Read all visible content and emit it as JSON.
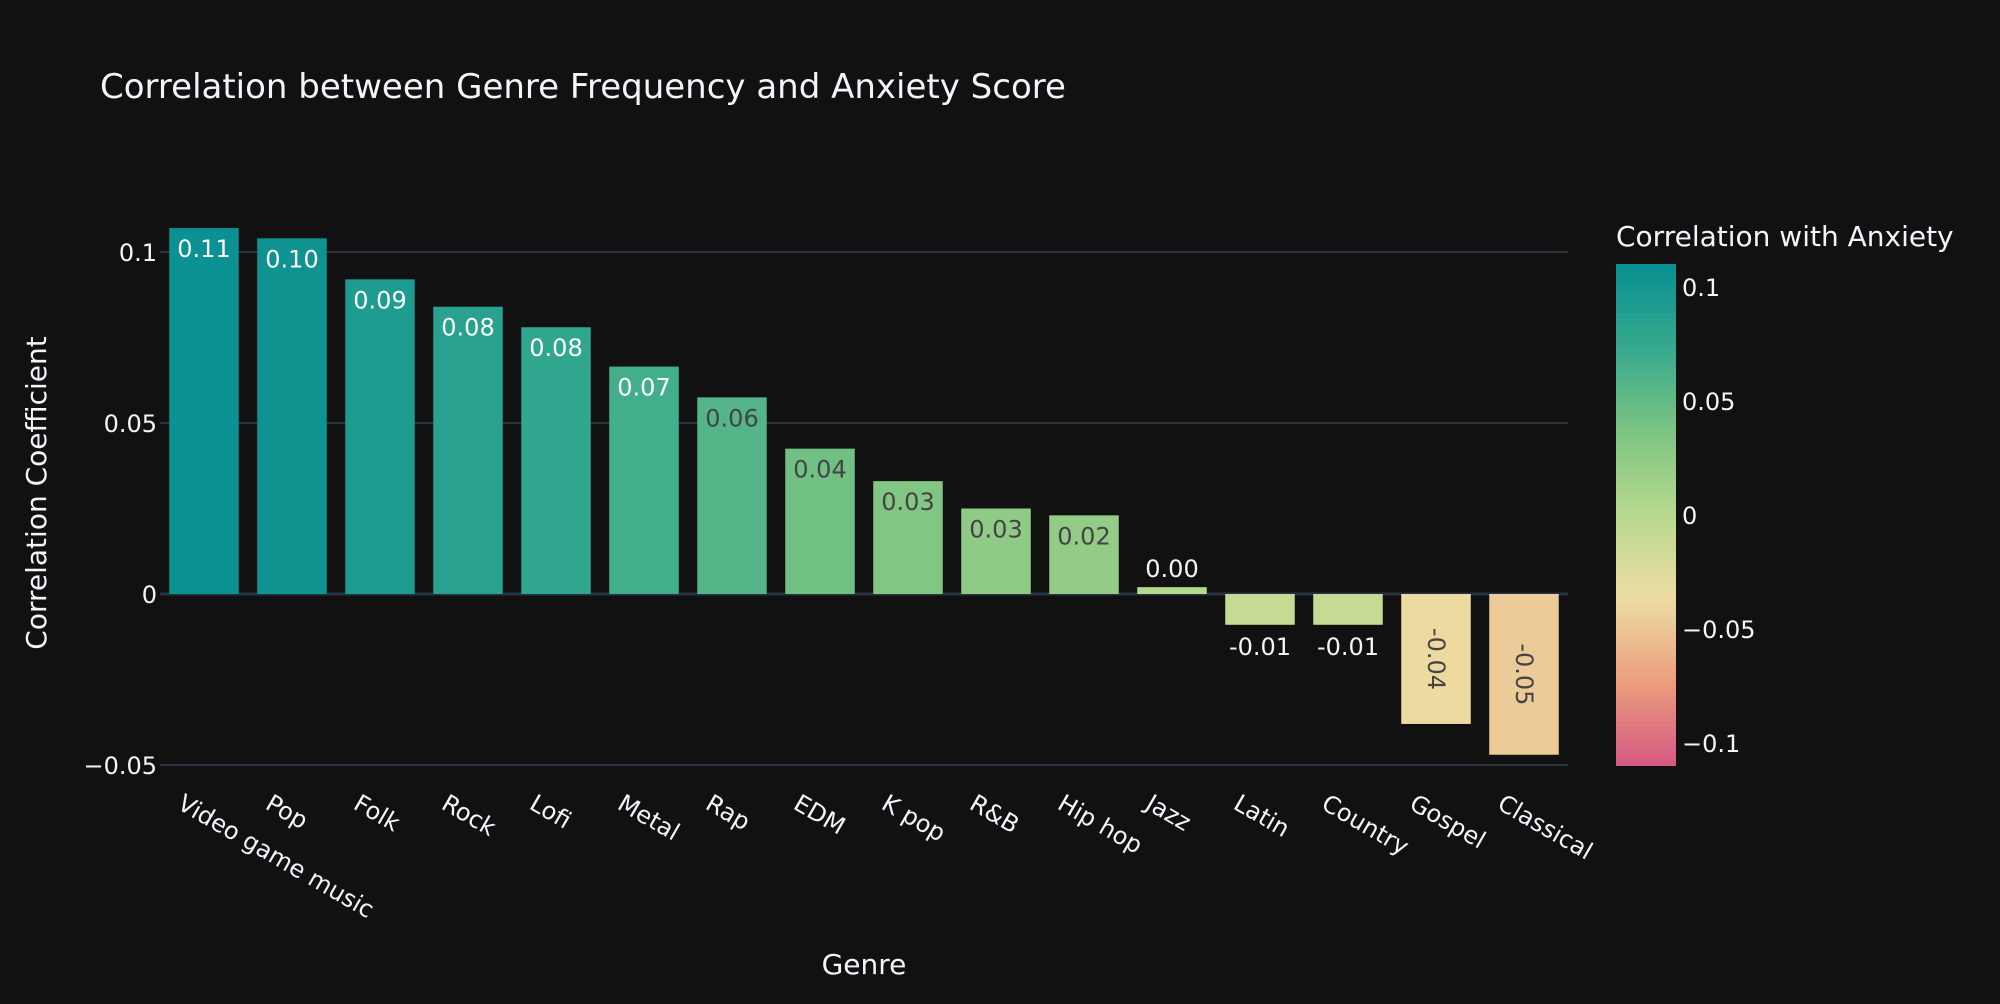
{
  "chart_data": {
    "type": "bar",
    "title": "Correlation between Genre Frequency and Anxiety Score",
    "xlabel": "Genre",
    "ylabel": "Correlation Coefficient",
    "categories": [
      "Video game music",
      "Pop",
      "Folk",
      "Rock",
      "Lofi",
      "Metal",
      "Rap",
      "EDM",
      "K pop",
      "R&B",
      "Hip hop",
      "Jazz",
      "Latin",
      "Country",
      "Gospel",
      "Classical"
    ],
    "values": [
      0.107,
      0.104,
      0.092,
      0.084,
      0.078,
      0.0665,
      0.0575,
      0.0425,
      0.033,
      0.025,
      0.023,
      0.002,
      -0.009,
      -0.009,
      -0.038,
      -0.047
    ],
    "data_labels": [
      "0.11",
      "0.10",
      "0.09",
      "0.08",
      "0.08",
      "0.07",
      "0.06",
      "0.04",
      "0.03",
      "0.03",
      "0.02",
      "0.00",
      "-0.01",
      "-0.01",
      "-0.04",
      "-0.05"
    ],
    "ylim": [
      -0.05,
      0.11
    ],
    "y_ticks": [
      -0.05,
      0,
      0.05,
      0.1
    ],
    "y_tick_labels": [
      "−0.05",
      "0",
      "0.05",
      "0.1"
    ],
    "grid": true,
    "colorscale": [
      "#d55882",
      "#eb9e7d",
      "#eddca2",
      "#b8d98e",
      "#7cc482",
      "#36a98e",
      "#078f92"
    ],
    "colorbar": {
      "title": "Correlation with Anxiety",
      "range": [
        -0.11,
        0.11
      ],
      "ticks": [
        0.1,
        0.05,
        0,
        -0.05,
        -0.1
      ],
      "tick_labels": [
        "0.1",
        "0.05",
        "0",
        "−0.05",
        "−0.1"
      ]
    },
    "background": "#111111",
    "grid_color": "#283442"
  }
}
